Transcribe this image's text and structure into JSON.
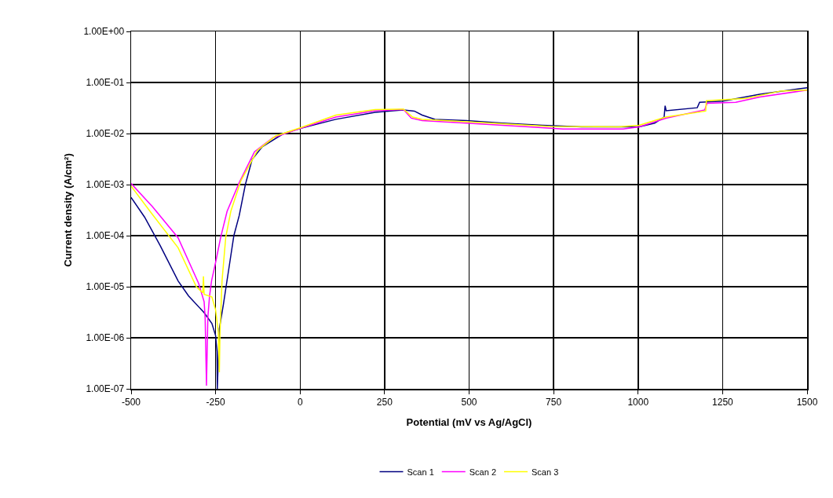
{
  "chart_data": {
    "type": "line",
    "xlabel": "Potential (mV vs Ag/AgCl)",
    "ylabel": "Current density (A/cm²)",
    "xlim": [
      -500,
      1500
    ],
    "xticks": [
      -500,
      -250,
      0,
      250,
      500,
      750,
      1000,
      1250,
      1500
    ],
    "ylim": [
      1e-07,
      1
    ],
    "log": true,
    "yticks": [
      {
        "value": 1e-07,
        "label": "1.00E-07"
      },
      {
        "value": 1e-06,
        "label": "1.00E-06"
      },
      {
        "value": 1e-05,
        "label": "1.00E-05"
      },
      {
        "value": 0.0001,
        "label": "1.00E-04"
      },
      {
        "value": 0.001,
        "label": "1.00E-03"
      },
      {
        "value": 0.01,
        "label": "1.00E-02"
      },
      {
        "value": 0.1,
        "label": "1.00E-01"
      },
      {
        "value": 1,
        "label": "1.00E+00"
      }
    ],
    "grid": true,
    "legend": "bottom",
    "marker": "none",
    "line_style": "solid",
    "series": [
      {
        "name": "Scan 1",
        "color": "#000080",
        "x": [
          -500,
          -460,
          -414,
          -361,
          -330,
          -284,
          -261,
          -250,
          -246,
          -245,
          -239,
          -227,
          -219,
          -208,
          -196,
          -180,
          -162,
          -142,
          -112,
          -49,
          0,
          106,
          222,
          306,
          338,
          361,
          399,
          492,
          600,
          717,
          833,
          1003,
          1049,
          1077,
          1080,
          1083,
          1175,
          1182,
          1251,
          1360,
          1500
        ],
        "values": [
          0.00056,
          0.00023,
          6.4e-05,
          1.3e-05,
          6.6e-06,
          3.1e-06,
          1.9e-06,
          1.1e-06,
          5.4e-07,
          1e-07,
          1.5e-06,
          4.5e-06,
          1e-05,
          3e-05,
          0.0001,
          0.00025,
          0.001,
          0.0031,
          0.0055,
          0.01,
          0.0126,
          0.019,
          0.026,
          0.029,
          0.0275,
          0.023,
          0.019,
          0.018,
          0.016,
          0.0145,
          0.0135,
          0.0135,
          0.016,
          0.021,
          0.035,
          0.028,
          0.032,
          0.041,
          0.043,
          0.059,
          0.079
        ]
      },
      {
        "name": "Scan 2",
        "color": "#ff00ff",
        "x": [
          -500,
          -437,
          -361,
          -300,
          -284,
          -281,
          -277,
          -273,
          -268,
          -262,
          -250,
          -235,
          -216,
          -180,
          -135,
          -80,
          0,
          106,
          222,
          306,
          329,
          361,
          492,
          677,
          778,
          956,
          1003,
          1082,
          1197,
          1204,
          1289,
          1360,
          1500
        ],
        "values": [
          0.00105,
          0.00037,
          9.1e-05,
          1.15e-05,
          5.1e-06,
          2.5e-06,
          1.15e-07,
          2.5e-06,
          6.5e-06,
          1.3e-05,
          3e-05,
          9.3e-05,
          0.0003,
          0.0011,
          0.0044,
          0.0083,
          0.0126,
          0.021,
          0.028,
          0.0295,
          0.02,
          0.018,
          0.016,
          0.0135,
          0.0123,
          0.0123,
          0.0135,
          0.02,
          0.029,
          0.039,
          0.041,
          0.052,
          0.071
        ]
      },
      {
        "name": "Scan 3",
        "color": "#ffff00",
        "x": [
          -500,
          -437,
          -361,
          -307,
          -288,
          -286,
          -284,
          -261,
          -250,
          -242,
          -239,
          -237,
          -231,
          -220,
          -205,
          -175,
          -126,
          -73,
          0,
          106,
          222,
          306,
          333,
          361,
          492,
          740,
          942,
          1003,
          1082,
          1200,
          1202,
          1320,
          1422,
          1500
        ],
        "values": [
          0.00093,
          0.00026,
          5.8e-05,
          1e-05,
          7.6e-06,
          1.6e-05,
          7.1e-06,
          6.3e-06,
          3.5e-06,
          1.26e-06,
          2.1e-07,
          1.26e-06,
          1.3e-05,
          9.3e-05,
          0.0003,
          0.0012,
          0.0047,
          0.0089,
          0.0129,
          0.023,
          0.0295,
          0.03,
          0.021,
          0.019,
          0.017,
          0.0138,
          0.0135,
          0.0145,
          0.021,
          0.0275,
          0.044,
          0.049,
          0.068,
          0.071
        ]
      }
    ]
  }
}
